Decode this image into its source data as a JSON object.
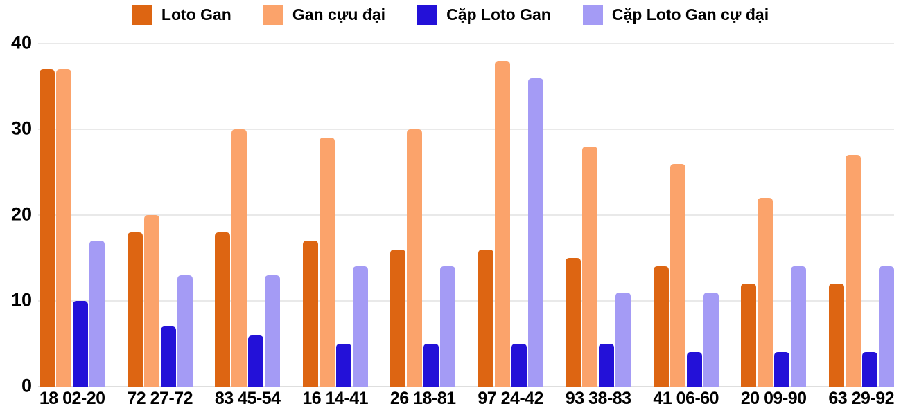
{
  "chart_data": {
    "type": "bar",
    "title": "",
    "categories": [
      "18 02-20",
      "72 27-72",
      "83 45-54",
      "16 14-41",
      "26 18-81",
      "97 24-42",
      "93 38-83",
      "41 06-60",
      "20 09-90",
      "63 29-92"
    ],
    "series": [
      {
        "name": "Loto Gan",
        "color": "#dd6512",
        "values": [
          37,
          18,
          18,
          17,
          16,
          16,
          15,
          14,
          12,
          12
        ]
      },
      {
        "name": "Gan cựu đại",
        "color": "#fba36b",
        "values": [
          37,
          20,
          30,
          29,
          30,
          38,
          28,
          26,
          22,
          27
        ]
      },
      {
        "name": "Cặp Loto Gan",
        "color": "#2311d8",
        "values": [
          10,
          7,
          6,
          5,
          5,
          5,
          5,
          4,
          4,
          4
        ]
      },
      {
        "name": "Cặp Loto Gan cự đại",
        "color": "#a49bf5",
        "values": [
          17,
          13,
          13,
          14,
          14,
          36,
          11,
          11,
          14,
          14
        ]
      }
    ],
    "xlabel": "",
    "ylabel": "",
    "ylim": [
      0,
      40
    ],
    "yticks": [
      0,
      10,
      20,
      30,
      40
    ],
    "grid": true,
    "legend_position": "top",
    "colors": {
      "background": "#ffffff",
      "gridline": "#e9e9e9",
      "axis_line": "#dedede",
      "text": "#000000"
    }
  }
}
